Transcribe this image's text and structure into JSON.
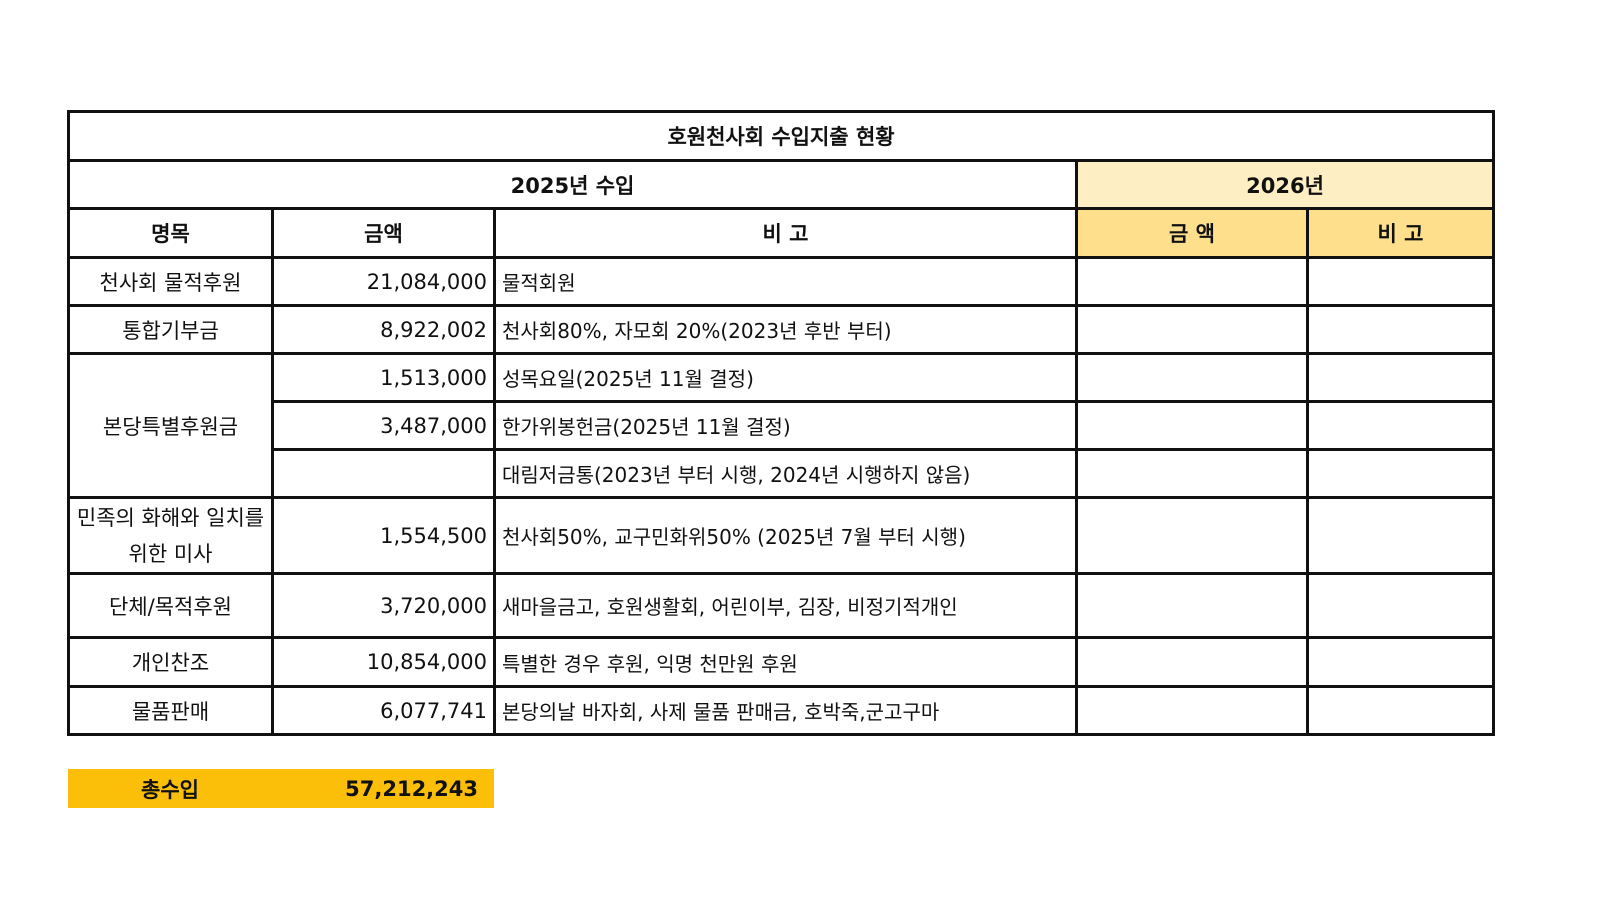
{
  "title": "호원천사회 수입지출 현황",
  "section_2025": "2025년 수입",
  "section_2026": "2026년",
  "headers": {
    "item": "명목",
    "amount": "금액",
    "note": "비 고",
    "amount_2026": "금 액",
    "note_2026": "비 고"
  },
  "rows": [
    {
      "item": "천사회 물적후원",
      "amount": "21,084,000",
      "note": "물적회원"
    },
    {
      "item": "통합기부금",
      "amount": "8,922,002",
      "note": "천사회80%, 자모회 20%(2023년 후반 부터)"
    },
    {
      "item": "본당특별후원금",
      "amount": "1,513,000",
      "note": "성목요일(2025년 11월 결정)"
    },
    {
      "item": "",
      "amount": "3,487,000",
      "note": "한가위봉헌금(2025년 11월 결정)"
    },
    {
      "item": "",
      "amount": "",
      "note": "대림저금통(2023년 부터 시행, 2024년 시행하지 않음)"
    },
    {
      "item": "민족의 화해와 일치를 위한 미사",
      "amount": "1,554,500",
      "note": "천사회50%, 교구민화위50% (2025년 7월 부터 시행)"
    },
    {
      "item": "단체/목적후원",
      "amount": "3,720,000",
      "note": "새마을금고, 호원생활회, 어린이부, 김장, 비정기적개인"
    },
    {
      "item": "개인찬조",
      "amount": "10,854,000",
      "note": "특별한 경우 후원, 익명 천만원 후원"
    },
    {
      "item": "물품판매",
      "amount": "6,077,741",
      "note": "본당의날 바자회, 사제 물품 판매금, 호박죽,군고구마"
    }
  ],
  "total": {
    "label": "총수입",
    "value": "57,212,243"
  },
  "colors": {
    "header_2026": "#fdefc3",
    "subheader_2026": "#fddf8c",
    "total_bar": "#fbbf0a"
  }
}
